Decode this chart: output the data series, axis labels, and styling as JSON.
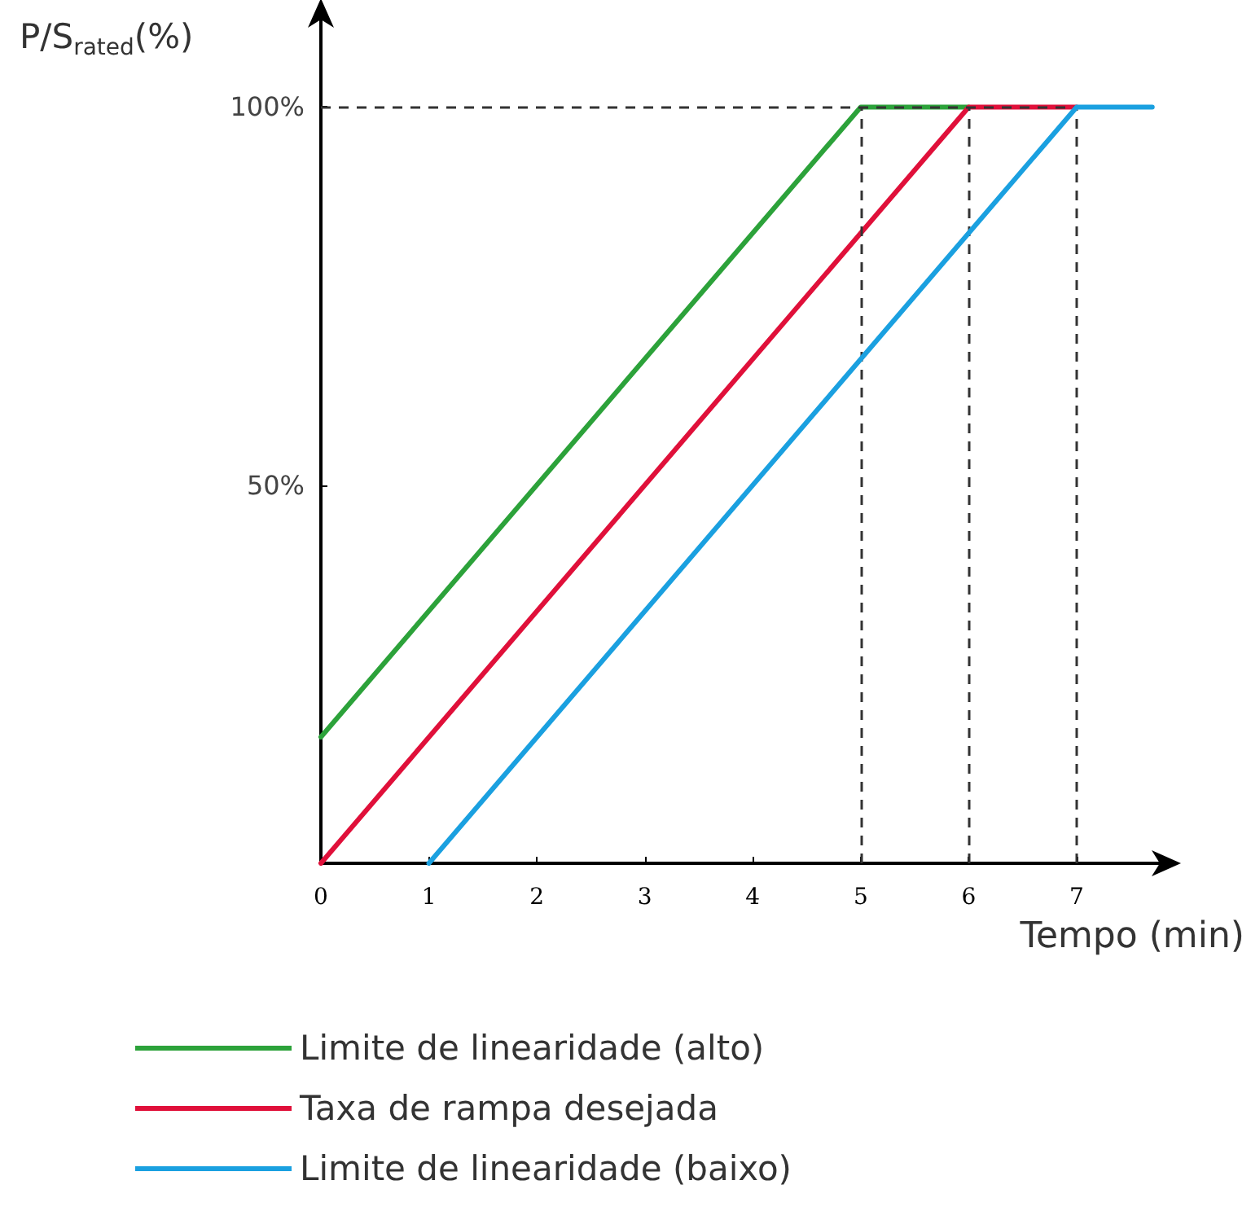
{
  "chart_data": {
    "type": "line",
    "ylabel": "P/S$_{rated}$(%)",
    "xlabel": "Tempo (min)",
    "xlim": [
      0,
      7.8
    ],
    "xticks": [
      0,
      1,
      2,
      3,
      4,
      5,
      6,
      7
    ],
    "ylim": [
      0,
      112
    ],
    "yticks": [
      {
        "value": 50,
        "label": "50%"
      },
      {
        "value": 100,
        "label": "100%"
      }
    ],
    "series": [
      {
        "name": "Limite de linearidade (alto)",
        "color": "#2ca23a",
        "x": [
          0,
          5,
          6
        ],
        "values": [
          16.7,
          100,
          100
        ]
      },
      {
        "name": "Taxa de rampa desejada",
        "color": "#e0103a",
        "x": [
          0,
          6,
          7
        ],
        "values": [
          0,
          100,
          100
        ]
      },
      {
        "name": "Limite de linearidade (baixo)",
        "color": "#1aa0e0",
        "x": [
          1,
          7,
          7.7
        ],
        "values": [
          0,
          100,
          100
        ]
      }
    ],
    "ref_lines": [
      {
        "axis": "y",
        "value": 100
      },
      {
        "axis": "x",
        "value": 5
      },
      {
        "axis": "x",
        "value": 6
      },
      {
        "axis": "x",
        "value": 7
      }
    ],
    "grid": false,
    "legend": "bottom",
    "marker": "none",
    "line_style": "solid"
  }
}
